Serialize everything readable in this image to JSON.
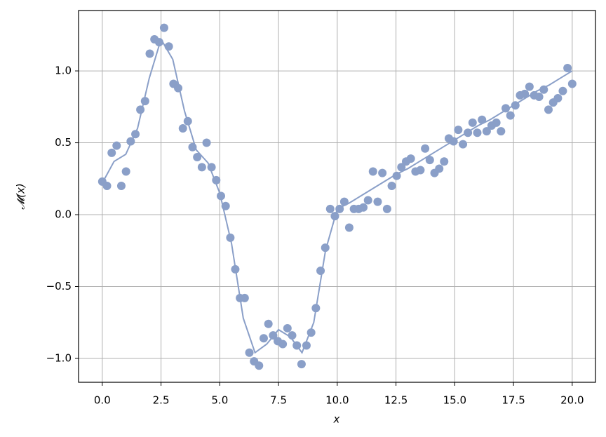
{
  "chart_data": {
    "type": "scatter",
    "xlabel": "x",
    "ylabel": "𝓜(x)",
    "xlim": [
      -1.01,
      20.99
    ],
    "ylim": [
      -1.166,
      1.42
    ],
    "grid": true,
    "xticks": [
      {
        "value": 0,
        "label": "0.0"
      },
      {
        "value": 2.5,
        "label": "2.5"
      },
      {
        "value": 5,
        "label": "5.0"
      },
      {
        "value": 7.5,
        "label": "7.5"
      },
      {
        "value": 10,
        "label": "10.0"
      },
      {
        "value": 12.5,
        "label": "12.5"
      },
      {
        "value": 15,
        "label": "15.0"
      },
      {
        "value": 17.5,
        "label": "17.5"
      },
      {
        "value": 20,
        "label": "20.0"
      }
    ],
    "yticks": [
      {
        "value": -1,
        "label": "−1.0"
      },
      {
        "value": -0.5,
        "label": "−0.5"
      },
      {
        "value": 0,
        "label": "0.0"
      },
      {
        "value": 0.5,
        "label": "0.5"
      },
      {
        "value": 1,
        "label": "1.0"
      }
    ],
    "series": [
      {
        "type": "line",
        "color": "#8a9fc8",
        "x": [
          0,
          0.5,
          1,
          1.5,
          2,
          2.5,
          3,
          3.5,
          4,
          4.5,
          5,
          5.5,
          6,
          6.5,
          7,
          7.5,
          8,
          8.5,
          9,
          9.5,
          10,
          10.5,
          11,
          11.5,
          12,
          12.5,
          13,
          13.5,
          14,
          14.5,
          15,
          15.5,
          16,
          16.5,
          17,
          17.5,
          18,
          18.5,
          19,
          19.5,
          20
        ],
        "values": [
          0.22,
          0.37,
          0.42,
          0.6,
          0.95,
          1.22,
          1.08,
          0.72,
          0.45,
          0.36,
          0.15,
          -0.2,
          -0.72,
          -0.96,
          -0.9,
          -0.8,
          -0.85,
          -0.96,
          -0.75,
          -0.25,
          0.04,
          0.08,
          0.13,
          0.18,
          0.23,
          0.28,
          0.32,
          0.37,
          0.42,
          0.47,
          0.52,
          0.57,
          0.62,
          0.66,
          0.71,
          0.76,
          0.81,
          0.86,
          0.9,
          0.95,
          1.0
        ]
      },
      {
        "type": "scatter",
        "color": "#8a9fc8",
        "x": [
          0,
          0.2,
          0.4,
          0.61,
          0.81,
          1.01,
          1.21,
          1.41,
          1.62,
          1.82,
          2.02,
          2.22,
          2.42,
          2.63,
          2.83,
          3.03,
          3.23,
          3.43,
          3.64,
          3.84,
          4.04,
          4.24,
          4.44,
          4.65,
          4.85,
          5.05,
          5.25,
          5.45,
          5.66,
          5.86,
          6.06,
          6.26,
          6.46,
          6.67,
          6.87,
          7.07,
          7.27,
          7.47,
          7.68,
          7.88,
          8.08,
          8.28,
          8.48,
          8.69,
          8.89,
          9.09,
          9.29,
          9.49,
          9.7,
          9.9,
          10.1,
          10.3,
          10.51,
          10.71,
          10.91,
          11.11,
          11.31,
          11.52,
          11.72,
          11.92,
          12.12,
          12.32,
          12.53,
          12.73,
          12.93,
          13.13,
          13.33,
          13.54,
          13.74,
          13.94,
          14.14,
          14.34,
          14.55,
          14.75,
          14.95,
          15.15,
          15.35,
          15.56,
          15.76,
          15.96,
          16.16,
          16.36,
          16.57,
          16.77,
          16.97,
          17.17,
          17.37,
          17.58,
          17.78,
          17.98,
          18.18,
          18.38,
          18.59,
          18.79,
          18.99,
          19.19,
          19.39,
          19.6,
          19.8,
          20
        ],
        "values": [
          0.23,
          0.2,
          0.43,
          0.48,
          0.2,
          0.3,
          0.51,
          0.56,
          0.73,
          0.79,
          1.12,
          1.22,
          1.2,
          1.3,
          1.17,
          0.91,
          0.88,
          0.6,
          0.65,
          0.47,
          0.4,
          0.33,
          0.5,
          0.33,
          0.24,
          0.13,
          0.06,
          -0.16,
          -0.38,
          -0.58,
          -0.58,
          -0.96,
          -1.02,
          -1.05,
          -0.86,
          -0.76,
          -0.84,
          -0.88,
          -0.9,
          -0.79,
          -0.84,
          -0.91,
          -1.04,
          -0.91,
          -0.82,
          -0.65,
          -0.39,
          -0.23,
          0.04,
          -0.01,
          0.04,
          0.09,
          -0.09,
          0.04,
          0.04,
          0.05,
          0.1,
          0.3,
          0.09,
          0.29,
          0.04,
          0.2,
          0.27,
          0.33,
          0.37,
          0.39,
          0.3,
          0.31,
          0.46,
          0.38,
          0.29,
          0.32,
          0.37,
          0.53,
          0.51,
          0.59,
          0.49,
          0.57,
          0.64,
          0.57,
          0.66,
          0.58,
          0.62,
          0.64,
          0.58,
          0.74,
          0.69,
          0.76,
          0.83,
          0.84,
          0.89,
          0.83,
          0.82,
          0.87,
          0.73,
          0.78,
          0.81,
          0.86,
          1.02,
          0.91
        ]
      }
    ]
  }
}
